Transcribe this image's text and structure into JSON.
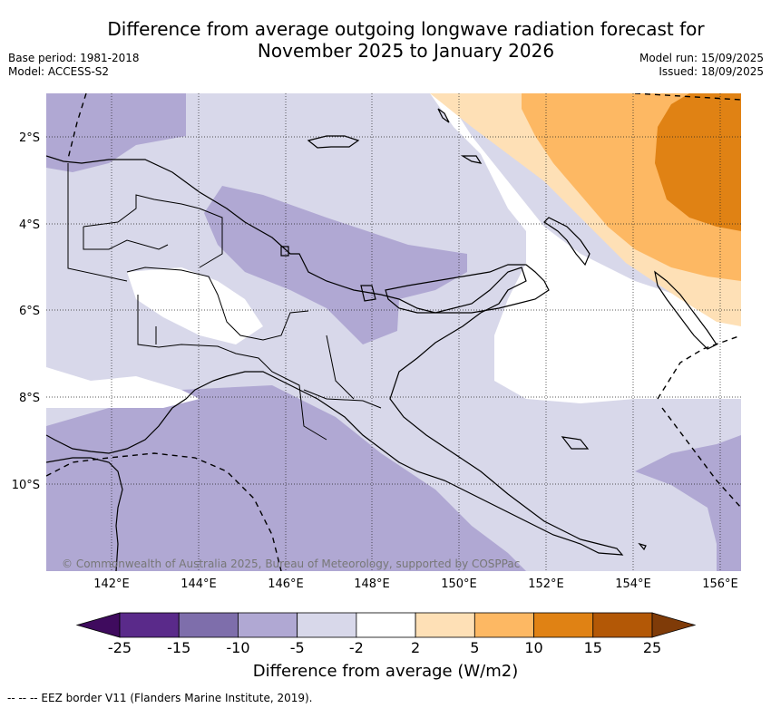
{
  "title_line1": "Difference from average outgoing longwave radiation forecast for",
  "title_line2": "November 2025 to January 2026",
  "base_period": "Base period: 1981-2018",
  "model": "Model: ACCESS-S2",
  "model_run": "Model run: 15/09/2025",
  "issued": "Issued: 18/09/2025",
  "copyright": "© Commonwealth of Australia 2025, Bureau of Meteorology, supported by COSPPac",
  "lat_labels": [
    "2°S",
    "4°S",
    "6°S",
    "8°S",
    "10°S"
  ],
  "lon_labels": [
    "142°E",
    "144°E",
    "146°E",
    "148°E",
    "150°E",
    "152°E",
    "154°E",
    "156°E"
  ],
  "colorbar": {
    "label": "Difference from average (W/m2)",
    "ticks": [
      "-25",
      "-15",
      "-10",
      "-5",
      "-2",
      "2",
      "5",
      "10",
      "15",
      "25"
    ],
    "colors": [
      "#3f0b5e",
      "#5a2a8a",
      "#7e6eab",
      "#b0a8d3",
      "#d8d8ea",
      "#ffffff",
      "#fee0b6",
      "#fdb863",
      "#e08214",
      "#b35806",
      "#7f3b08"
    ]
  },
  "footnote": "--  --  -- EEZ border V11 (Flanders Marine Institute, 2019)."
}
